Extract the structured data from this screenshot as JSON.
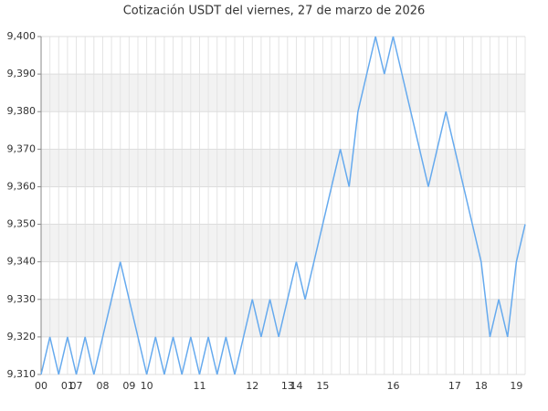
{
  "chart_data": {
    "type": "line",
    "title": "Cotización USDT del viernes, 27 de marzo de 2026",
    "categories": [
      "00",
      null,
      null,
      "01",
      "07",
      null,
      null,
      "08",
      null,
      null,
      "09",
      null,
      "10",
      null,
      null,
      null,
      null,
      null,
      "11",
      null,
      null,
      null,
      null,
      null,
      "12",
      null,
      null,
      null,
      "13",
      "14",
      null,
      null,
      "15",
      null,
      null,
      null,
      null,
      null,
      null,
      null,
      "16",
      null,
      null,
      null,
      null,
      null,
      null,
      "17",
      null,
      null,
      "18",
      null,
      null,
      null,
      "19",
      null
    ],
    "values": [
      9.31,
      9.32,
      9.31,
      9.32,
      9.31,
      9.32,
      9.31,
      9.32,
      9.33,
      9.34,
      9.33,
      9.32,
      9.31,
      9.32,
      9.31,
      9.32,
      9.31,
      9.32,
      9.31,
      9.32,
      9.31,
      9.32,
      9.31,
      9.32,
      9.33,
      9.32,
      9.33,
      9.32,
      9.33,
      9.34,
      9.33,
      9.34,
      9.35,
      9.36,
      9.37,
      9.36,
      9.38,
      9.39,
      9.4,
      9.39,
      9.4,
      9.39,
      9.38,
      9.37,
      9.36,
      9.37,
      9.38,
      9.37,
      9.36,
      9.35,
      9.34,
      9.32,
      9.33,
      9.32,
      9.34,
      9.35
    ],
    "color": "#66aaee",
    "ylim": [
      9.31,
      9.4
    ],
    "yticks": [
      {
        "value": 9.31,
        "label": "9,310"
      },
      {
        "value": 9.32,
        "label": "9,320"
      },
      {
        "value": 9.33,
        "label": "9,330"
      },
      {
        "value": 9.34,
        "label": "9,340"
      },
      {
        "value": 9.35,
        "label": "9,350"
      },
      {
        "value": 9.36,
        "label": "9,360"
      },
      {
        "value": 9.37,
        "label": "9,370"
      },
      {
        "value": 9.38,
        "label": "9,380"
      },
      {
        "value": 9.39,
        "label": "9,390"
      },
      {
        "value": 9.4,
        "label": "9,400"
      }
    ],
    "grid": true
  }
}
